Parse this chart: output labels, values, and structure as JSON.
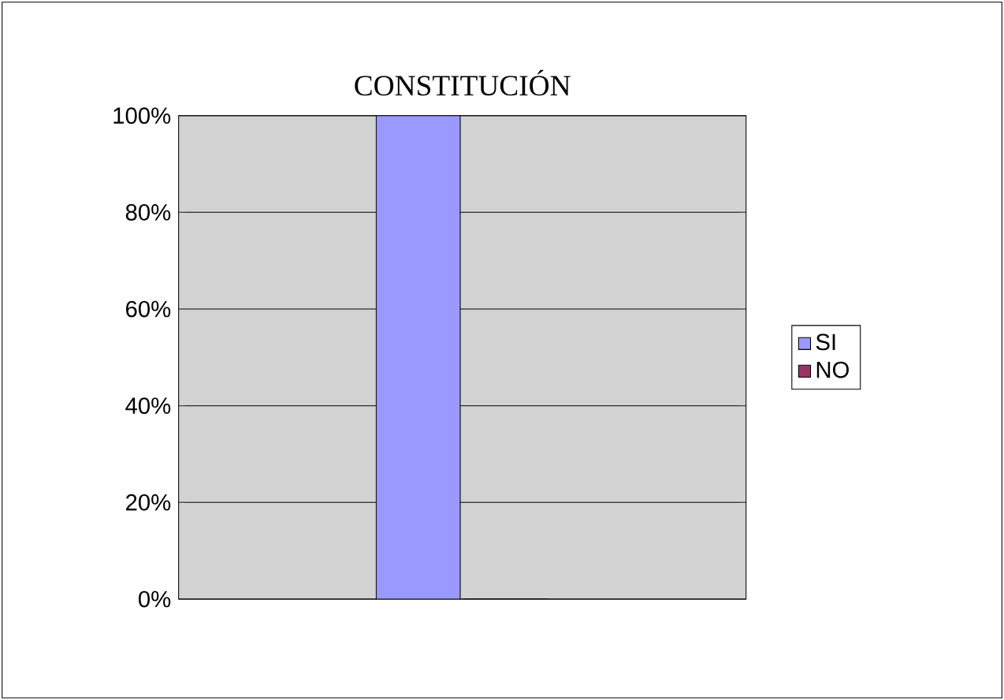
{
  "chart_data": {
    "type": "bar",
    "title": "CONSTITUCIÓN",
    "categories": [
      null
    ],
    "series": [
      {
        "name": "SI",
        "color": "#9999ff",
        "values": [
          100
        ]
      },
      {
        "name": "NO",
        "color": "#993366",
        "values": [
          0
        ]
      }
    ],
    "ylim": [
      0,
      100
    ],
    "yticks": [
      {
        "value": 0,
        "label": "0%"
      },
      {
        "value": 20,
        "label": "20%"
      },
      {
        "value": 40,
        "label": "40%"
      },
      {
        "value": 60,
        "label": "60%"
      },
      {
        "value": 80,
        "label": "80%"
      },
      {
        "value": 100,
        "label": "100%"
      }
    ],
    "grid": "y",
    "legend": "right"
  }
}
